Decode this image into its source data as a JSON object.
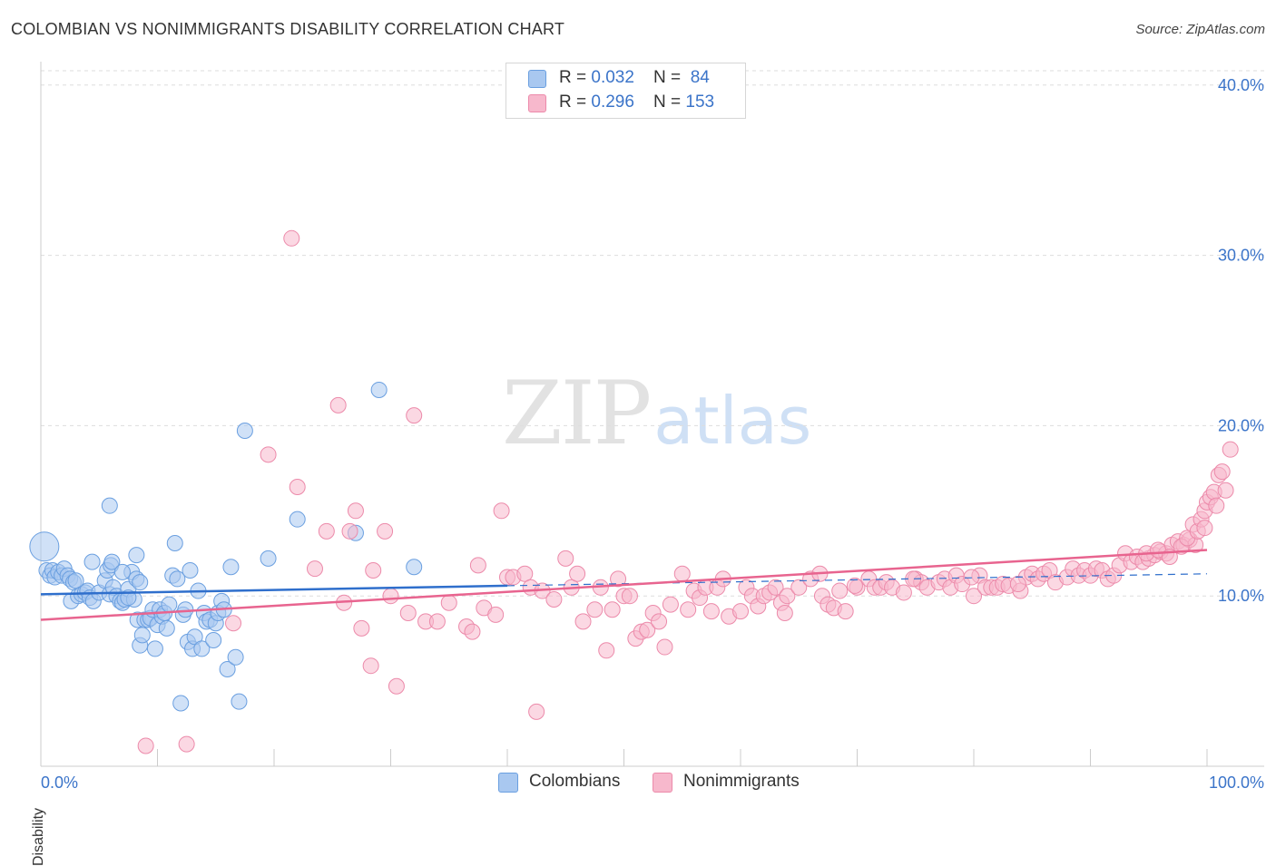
{
  "header": {
    "title": "COLOMBIAN VS NONIMMIGRANTS DISABILITY CORRELATION CHART",
    "source": "Source: ZipAtlas.com"
  },
  "watermark": {
    "zip": "ZIP",
    "atlas": "atlas"
  },
  "legend": {
    "rows": [
      {
        "r_label": "R = ",
        "r_value": "0.032",
        "n_label": "N = ",
        "n_value": "84"
      },
      {
        "r_label": "R = ",
        "r_value": "0.296",
        "n_label": "N = ",
        "n_value": "153"
      }
    ]
  },
  "colors": {
    "colombians_fill": "#a9c8f0",
    "colombians_stroke": "#6a9fe0",
    "colombians_line": "#2f6fcc",
    "nonimmigrants_fill": "#f7b8cc",
    "nonimmigrants_stroke": "#ec8aaa",
    "nonimmigrants_line": "#e8648f",
    "tick_label": "#3b74c9",
    "grid": "#dddddd"
  },
  "chart_data": {
    "type": "scatter",
    "title": "COLOMBIAN VS NONIMMIGRANTS DISABILITY CORRELATION CHART",
    "xlabel": "",
    "ylabel": "Disability",
    "xlim": [
      0,
      100
    ],
    "ylim": [
      0,
      41
    ],
    "x_tick_labels": [
      "0.0%",
      "100.0%"
    ],
    "y_ticks": [
      10,
      20,
      30,
      40
    ],
    "y_tick_labels": [
      "10.0%",
      "20.0%",
      "30.0%",
      "40.0%"
    ],
    "grid": true,
    "legend_position": "top-center",
    "series": [
      {
        "name": "Colombians",
        "r": 0.032,
        "n": 84,
        "trend": {
          "x0": 0,
          "y0": 10.1,
          "x1": 40,
          "y1": 10.6,
          "dashed_to_x": 100,
          "dashed_to_y": 11.3
        },
        "points": [
          [
            0.3,
            12.9
          ],
          [
            0.5,
            11.5
          ],
          [
            0.8,
            11.2
          ],
          [
            1.0,
            11.5
          ],
          [
            1.2,
            11.1
          ],
          [
            1.5,
            11.4
          ],
          [
            1.8,
            11.2
          ],
          [
            2.0,
            11.6
          ],
          [
            2.3,
            11.2
          ],
          [
            2.5,
            11.0
          ],
          [
            2.8,
            10.8
          ],
          [
            3.0,
            10.9
          ],
          [
            2.6,
            9.7
          ],
          [
            3.2,
            10.0
          ],
          [
            3.5,
            10.1
          ],
          [
            3.8,
            10.2
          ],
          [
            4.0,
            10.3
          ],
          [
            4.2,
            9.9
          ],
          [
            4.5,
            9.7
          ],
          [
            5.0,
            10.2
          ],
          [
            5.5,
            10.9
          ],
          [
            5.7,
            11.5
          ],
          [
            5.9,
            10.1
          ],
          [
            6.2,
            10.5
          ],
          [
            6.5,
            10.0
          ],
          [
            6.8,
            9.7
          ],
          [
            7.0,
            9.6
          ],
          [
            7.2,
            9.8
          ],
          [
            7.5,
            10.4
          ],
          [
            7.8,
            11.4
          ],
          [
            8.0,
            9.8
          ],
          [
            8.2,
            11.0
          ],
          [
            8.5,
            10.8
          ],
          [
            6.0,
            11.8
          ],
          [
            4.4,
            12.0
          ],
          [
            6.1,
            12.0
          ],
          [
            5.9,
            15.3
          ],
          [
            7.0,
            11.4
          ],
          [
            7.5,
            9.9
          ],
          [
            8.3,
            8.6
          ],
          [
            8.5,
            7.1
          ],
          [
            8.7,
            7.7
          ],
          [
            8.9,
            8.6
          ],
          [
            9.2,
            8.6
          ],
          [
            9.4,
            8.7
          ],
          [
            9.6,
            9.2
          ],
          [
            9.8,
            6.9
          ],
          [
            10.0,
            8.3
          ],
          [
            10.2,
            9.2
          ],
          [
            10.4,
            8.8
          ],
          [
            10.6,
            9.0
          ],
          [
            10.8,
            8.1
          ],
          [
            11.0,
            9.5
          ],
          [
            11.3,
            11.2
          ],
          [
            11.5,
            13.1
          ],
          [
            11.7,
            11.0
          ],
          [
            12.0,
            3.7
          ],
          [
            12.2,
            8.9
          ],
          [
            12.4,
            9.2
          ],
          [
            12.6,
            7.3
          ],
          [
            12.8,
            11.5
          ],
          [
            13.0,
            6.9
          ],
          [
            13.2,
            7.6
          ],
          [
            13.5,
            10.3
          ],
          [
            13.8,
            6.9
          ],
          [
            14.0,
            9.0
          ],
          [
            14.2,
            8.5
          ],
          [
            14.5,
            8.6
          ],
          [
            14.8,
            7.4
          ],
          [
            15.0,
            8.4
          ],
          [
            15.2,
            9.0
          ],
          [
            15.5,
            9.7
          ],
          [
            15.7,
            9.2
          ],
          [
            16.0,
            5.7
          ],
          [
            16.3,
            11.7
          ],
          [
            16.7,
            6.4
          ],
          [
            17.0,
            3.8
          ],
          [
            17.5,
            19.7
          ],
          [
            19.5,
            12.2
          ],
          [
            22.0,
            14.5
          ],
          [
            27.0,
            13.7
          ],
          [
            29.0,
            22.1
          ],
          [
            32.0,
            11.7
          ],
          [
            8.2,
            12.4
          ]
        ]
      },
      {
        "name": "Nonimmigrants",
        "r": 0.296,
        "n": 153,
        "trend": {
          "x0": 0,
          "y0": 8.6,
          "x1": 100,
          "y1": 12.7
        },
        "points": [
          [
            9.0,
            1.2
          ],
          [
            12.5,
            1.3
          ],
          [
            16.5,
            8.4
          ],
          [
            19.5,
            18.3
          ],
          [
            21.5,
            31.0
          ],
          [
            22.0,
            16.4
          ],
          [
            23.5,
            11.6
          ],
          [
            24.5,
            13.8
          ],
          [
            25.5,
            21.2
          ],
          [
            26.0,
            9.6
          ],
          [
            26.5,
            13.8
          ],
          [
            27.0,
            15.0
          ],
          [
            27.5,
            8.1
          ],
          [
            28.5,
            11.5
          ],
          [
            29.5,
            13.8
          ],
          [
            30.0,
            10.0
          ],
          [
            31.5,
            9.0
          ],
          [
            32.0,
            20.6
          ],
          [
            33.0,
            8.5
          ],
          [
            34.0,
            8.5
          ],
          [
            35.0,
            9.6
          ],
          [
            36.5,
            8.2
          ],
          [
            37.5,
            11.8
          ],
          [
            38.0,
            9.3
          ],
          [
            39.0,
            8.9
          ],
          [
            39.5,
            15.0
          ],
          [
            40.0,
            11.1
          ],
          [
            40.5,
            11.1
          ],
          [
            41.5,
            11.3
          ],
          [
            42.5,
            3.2
          ],
          [
            42.0,
            10.5
          ],
          [
            43.0,
            10.3
          ],
          [
            44.0,
            9.8
          ],
          [
            45.0,
            12.2
          ],
          [
            45.5,
            10.5
          ],
          [
            46.0,
            11.3
          ],
          [
            46.5,
            8.5
          ],
          [
            47.5,
            9.2
          ],
          [
            48.0,
            10.5
          ],
          [
            48.5,
            6.8
          ],
          [
            49.0,
            9.2
          ],
          [
            49.5,
            11.0
          ],
          [
            50.0,
            10.0
          ],
          [
            50.5,
            10.0
          ],
          [
            51.0,
            7.5
          ],
          [
            51.5,
            7.9
          ],
          [
            52.0,
            8.0
          ],
          [
            52.5,
            9.0
          ],
          [
            53.0,
            8.5
          ],
          [
            54.0,
            9.5
          ],
          [
            55.0,
            11.3
          ],
          [
            56.0,
            10.3
          ],
          [
            56.5,
            9.9
          ],
          [
            57.0,
            10.5
          ],
          [
            57.5,
            9.1
          ],
          [
            58.0,
            10.5
          ],
          [
            59.0,
            8.8
          ],
          [
            60.0,
            9.1
          ],
          [
            60.5,
            10.5
          ],
          [
            61.0,
            10.0
          ],
          [
            61.5,
            9.4
          ],
          [
            62.0,
            10.0
          ],
          [
            62.5,
            10.2
          ],
          [
            63.0,
            10.5
          ],
          [
            63.5,
            9.6
          ],
          [
            64.0,
            10.0
          ],
          [
            65.0,
            10.5
          ],
          [
            66.0,
            11.0
          ],
          [
            67.0,
            10.0
          ],
          [
            67.5,
            9.5
          ],
          [
            68.0,
            9.3
          ],
          [
            68.5,
            10.3
          ],
          [
            69.0,
            9.1
          ],
          [
            70.0,
            10.5
          ],
          [
            71.0,
            11.0
          ],
          [
            71.5,
            10.5
          ],
          [
            72.0,
            10.5
          ],
          [
            72.5,
            10.8
          ],
          [
            73.0,
            10.5
          ],
          [
            74.0,
            10.2
          ],
          [
            75.0,
            11.0
          ],
          [
            75.5,
            10.8
          ],
          [
            76.0,
            10.5
          ],
          [
            77.0,
            10.8
          ],
          [
            77.5,
            11.0
          ],
          [
            78.0,
            10.5
          ],
          [
            78.5,
            11.2
          ],
          [
            79.0,
            10.7
          ],
          [
            80.0,
            10.0
          ],
          [
            80.5,
            11.2
          ],
          [
            81.0,
            10.5
          ],
          [
            81.5,
            10.5
          ],
          [
            82.0,
            10.5
          ],
          [
            82.5,
            10.7
          ],
          [
            83.0,
            10.6
          ],
          [
            84.0,
            10.3
          ],
          [
            84.5,
            11.1
          ],
          [
            85.0,
            11.3
          ],
          [
            85.5,
            11.0
          ],
          [
            86.0,
            11.3
          ],
          [
            86.5,
            11.5
          ],
          [
            87.0,
            10.8
          ],
          [
            88.0,
            11.1
          ],
          [
            88.5,
            11.6
          ],
          [
            89.0,
            11.2
          ],
          [
            89.5,
            11.5
          ],
          [
            90.0,
            11.2
          ],
          [
            90.5,
            11.6
          ],
          [
            91.0,
            11.5
          ],
          [
            91.5,
            11.0
          ],
          [
            92.0,
            11.2
          ],
          [
            92.5,
            11.8
          ],
          [
            93.0,
            12.5
          ],
          [
            93.5,
            12.0
          ],
          [
            94.0,
            12.3
          ],
          [
            94.5,
            12.0
          ],
          [
            95.0,
            12.2
          ],
          [
            95.5,
            12.4
          ],
          [
            96.0,
            12.6
          ],
          [
            96.5,
            12.5
          ],
          [
            97.0,
            13.0
          ],
          [
            97.5,
            13.2
          ],
          [
            98.0,
            13.0
          ],
          [
            98.5,
            13.3
          ],
          [
            99.0,
            13.0
          ],
          [
            94.8,
            12.5
          ],
          [
            95.8,
            12.7
          ],
          [
            96.8,
            12.3
          ],
          [
            97.8,
            12.9
          ],
          [
            98.3,
            13.4
          ],
          [
            98.8,
            14.2
          ],
          [
            99.2,
            13.8
          ],
          [
            99.5,
            14.5
          ],
          [
            99.8,
            15.0
          ],
          [
            100.0,
            15.5
          ],
          [
            100.3,
            15.8
          ],
          [
            100.6,
            16.1
          ],
          [
            101.0,
            17.1
          ],
          [
            101.3,
            17.3
          ],
          [
            101.6,
            16.2
          ],
          [
            102.0,
            18.6
          ],
          [
            99.8,
            14.0
          ],
          [
            100.8,
            15.3
          ],
          [
            53.5,
            7.0
          ],
          [
            55.5,
            9.2
          ],
          [
            58.5,
            11.0
          ],
          [
            63.8,
            9.0
          ],
          [
            66.8,
            11.3
          ],
          [
            69.8,
            10.6
          ],
          [
            74.8,
            11.0
          ],
          [
            79.8,
            11.1
          ],
          [
            83.8,
            10.7
          ],
          [
            37.0,
            7.9
          ],
          [
            28.3,
            5.9
          ],
          [
            30.5,
            4.7
          ]
        ]
      }
    ]
  },
  "bottom_legend": {
    "items": [
      {
        "label": "Colombians"
      },
      {
        "label": "Nonimmigrants"
      }
    ]
  }
}
